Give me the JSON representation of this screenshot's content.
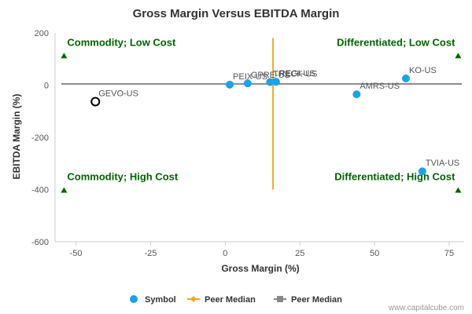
{
  "chart_data": {
    "type": "scatter",
    "title": "Gross Margin Versus EBITDA Margin",
    "xlabel": "Gross Margin (%)",
    "ylabel": "EBITDA Margin (%)",
    "xlim": [
      -57,
      80
    ],
    "ylim": [
      -600,
      200
    ],
    "x_ticks": [
      -50,
      -25,
      0,
      25,
      50,
      75
    ],
    "y_ticks": [
      200,
      0,
      -200,
      -400,
      -600
    ],
    "x_tick_labels": [
      "-50",
      "-25",
      "0",
      "25",
      "50",
      "75"
    ],
    "y_tick_labels": [
      "200",
      "0",
      "-200",
      "-400",
      "-600"
    ],
    "points": [
      {
        "label": "GEVO-US",
        "x": -43.5,
        "y": -63,
        "highlight": true
      },
      {
        "label": "PEIX-US",
        "x": 1.5,
        "y": 2
      },
      {
        "label": "GPRE-US",
        "x": 7.5,
        "y": 7
      },
      {
        "label": "TRECK-US",
        "x": 15,
        "y": 12
      },
      {
        "label": "REGI-US",
        "x": 17,
        "y": 13
      },
      {
        "label": "AMRS-US",
        "x": 44,
        "y": -35
      },
      {
        "label": "KO-US",
        "x": 60.5,
        "y": 26
      },
      {
        "label": "TVIA-US",
        "x": 66,
        "y": -330
      }
    ],
    "peer_median_x": 16,
    "peer_median_y": 5,
    "quadrant_labels": [
      {
        "text": "Commodity; Low Cost",
        "corner": "top-left"
      },
      {
        "text": "Differentiated; Low Cost",
        "corner": "top-right"
      },
      {
        "text": "Commodity; High Cost",
        "corner": "bottom-left"
      },
      {
        "text": "Differentiated; High Cost",
        "corner": "bottom-right"
      }
    ],
    "legend": [
      {
        "name": "Symbol",
        "color": "#1aa3e8",
        "marker": "circle"
      },
      {
        "name": "Peer Median",
        "color": "#f5a623",
        "marker": "diamond-line"
      },
      {
        "name": "Peer Median",
        "color": "#888888",
        "marker": "square-line"
      }
    ],
    "legend_position": "bottom-center",
    "colors": {
      "point": "#1aa3e8",
      "highlight_stroke": "#000000",
      "median_x_line": "#f5a623",
      "median_y_line": "#888888",
      "quadrant_text": "#006400",
      "triangle": "#006400"
    },
    "grid": false
  },
  "credit": "www.capitalcube.com"
}
